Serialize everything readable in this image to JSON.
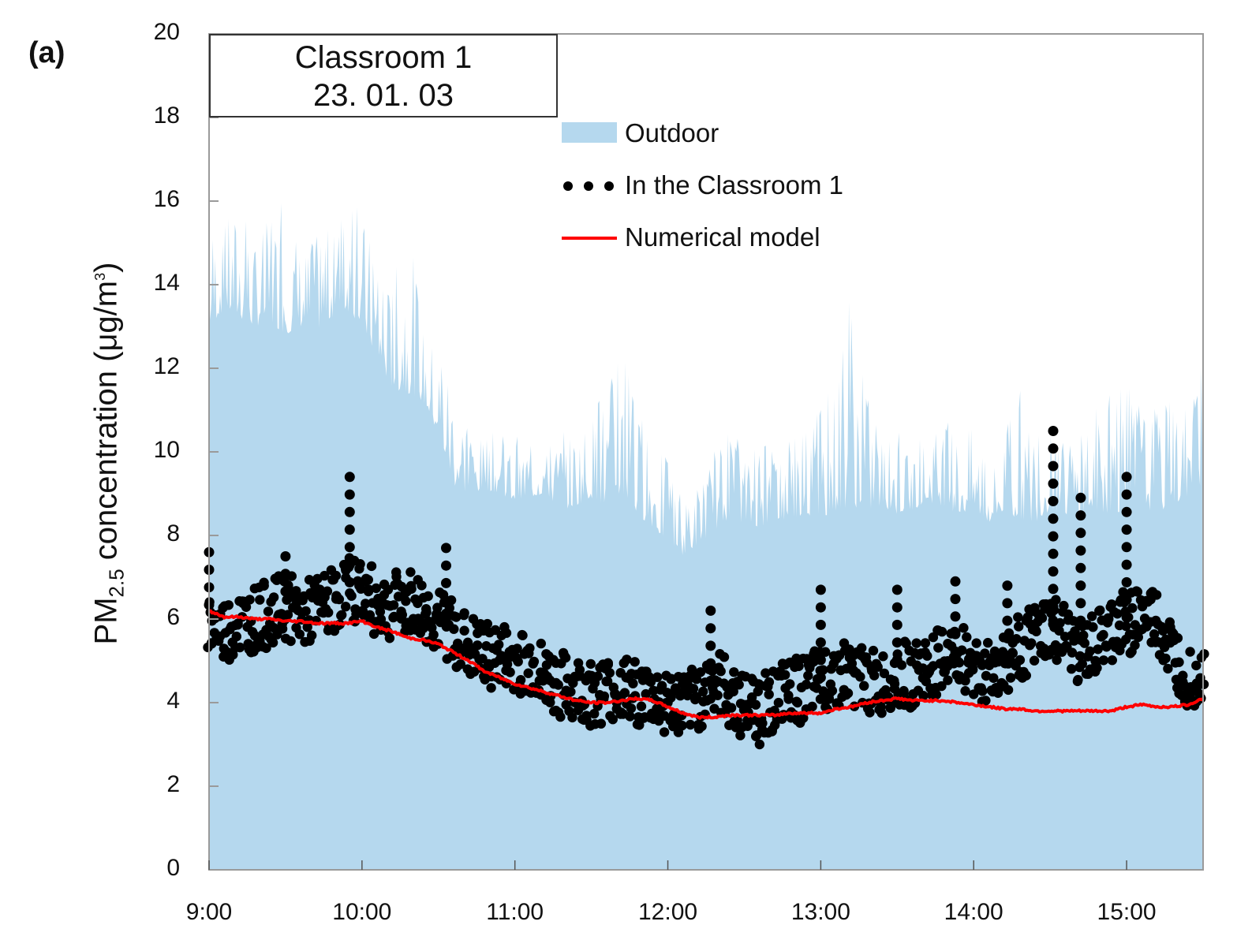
{
  "figure": {
    "panel_label": "(a)",
    "title_box": {
      "line1": "Classroom 1",
      "line2": "23. 01. 03"
    },
    "ylabel_main": "PM",
    "ylabel_sub": "2.5",
    "ylabel_rest": " concentration (μg/m",
    "ylabel_sup": "3",
    "ylabel_end": ")",
    "colors": {
      "outdoor": "#b5d8ee",
      "indoor": "#000000",
      "model": "#ff0000",
      "axis": "#9a9a9a"
    },
    "legend": [
      {
        "label": "Outdoor",
        "type": "area"
      },
      {
        "label": "In the Classroom 1",
        "type": "dots"
      },
      {
        "label": "Numerical model",
        "type": "line"
      }
    ]
  },
  "chart_data": {
    "type": "area",
    "title": "Classroom 1 — 23. 01. 03",
    "xlabel": "",
    "ylabel": "PM2.5 concentration (μg/m³)",
    "ylim": [
      0,
      20
    ],
    "yticks": [
      0,
      2,
      4,
      6,
      8,
      10,
      12,
      14,
      16,
      18,
      20
    ],
    "xticks": [
      "9:00",
      "10:00",
      "11:00",
      "12:00",
      "13:00",
      "14:00",
      "15:00"
    ],
    "xlim_hours": [
      9.0,
      15.5
    ],
    "grid": false,
    "legend_position": "upper center",
    "series": [
      {
        "name": "Outdoor",
        "type": "area",
        "x": [
          9.0,
          9.1,
          9.2,
          9.3,
          9.4,
          9.5,
          9.6,
          9.7,
          9.8,
          9.9,
          10.0,
          10.1,
          10.2,
          10.3,
          10.4,
          10.5,
          10.6,
          10.7,
          10.8,
          10.9,
          11.0,
          11.1,
          11.2,
          11.3,
          11.4,
          11.5,
          11.6,
          11.7,
          11.8,
          11.9,
          12.0,
          12.1,
          12.2,
          12.3,
          12.4,
          12.5,
          12.6,
          12.7,
          12.8,
          12.9,
          13.0,
          13.1,
          13.2,
          13.3,
          13.4,
          13.5,
          13.6,
          13.7,
          13.8,
          13.9,
          14.0,
          14.1,
          14.2,
          14.3,
          14.4,
          14.5,
          14.6,
          14.7,
          14.8,
          14.9,
          15.0,
          15.1,
          15.2,
          15.3,
          15.4,
          15.5
        ],
        "peak": [
          15.8,
          15.5,
          16.0,
          15.3,
          15.6,
          16.2,
          15.0,
          15.2,
          15.4,
          15.8,
          15.9,
          14.5,
          14.0,
          16.4,
          13.0,
          12.5,
          12.2,
          10.5,
          10.3,
          10.6,
          10.4,
          10.2,
          10.5,
          10.4,
          10.8,
          10.9,
          11.6,
          12.8,
          11.0,
          10.6,
          9.8,
          8.8,
          9.4,
          10.0,
          10.5,
          10.2,
          10.4,
          10.0,
          10.4,
          10.6,
          11.2,
          11.8,
          14.1,
          11.5,
          10.5,
          10.6,
          10.2,
          10.4,
          10.8,
          10.5,
          10.6,
          10.0,
          10.5,
          11.6,
          10.4,
          10.4,
          10.3,
          10.6,
          11.2,
          11.4,
          11.6,
          11.2,
          11.0,
          11.3,
          11.0,
          12.2
        ],
        "base": [
          13.0,
          13.4,
          13.2,
          13.0,
          13.1,
          12.8,
          13.0,
          12.9,
          13.2,
          13.4,
          13.0,
          12.2,
          11.5,
          11.4,
          11.2,
          10.4,
          9.2,
          9.0,
          9.1,
          9.0,
          8.8,
          8.9,
          9.0,
          8.6,
          8.7,
          8.9,
          8.7,
          9.0,
          8.5,
          8.2,
          7.8,
          7.5,
          7.8,
          8.1,
          8.4,
          8.3,
          8.2,
          8.3,
          8.4,
          8.5,
          8.4,
          8.6,
          8.7,
          8.6,
          8.7,
          8.5,
          8.6,
          8.8,
          8.7,
          8.5,
          8.6,
          8.3,
          8.5,
          8.4,
          8.3,
          8.6,
          8.5,
          8.5,
          8.6,
          8.5,
          8.6,
          8.7,
          8.5,
          8.8,
          8.8,
          9.2
        ]
      },
      {
        "name": "In the Classroom 1",
        "type": "scatter",
        "trend_x": [
          9.0,
          9.1,
          9.2,
          9.3,
          9.4,
          9.5,
          9.6,
          9.7,
          9.8,
          9.9,
          10.0,
          10.1,
          10.2,
          10.3,
          10.4,
          10.5,
          10.6,
          10.7,
          10.8,
          10.9,
          11.0,
          11.1,
          11.2,
          11.3,
          11.4,
          11.5,
          11.6,
          11.7,
          11.8,
          11.9,
          12.0,
          12.1,
          12.2,
          12.3,
          12.4,
          12.5,
          12.6,
          12.7,
          12.8,
          12.9,
          13.0,
          13.1,
          13.2,
          13.3,
          13.4,
          13.5,
          13.6,
          13.7,
          13.8,
          13.9,
          14.0,
          14.1,
          14.2,
          14.3,
          14.4,
          14.5,
          14.6,
          14.7,
          14.8,
          14.9,
          15.0,
          15.1,
          15.2,
          15.3,
          15.4,
          15.5
        ],
        "trend_y": [
          6.0,
          5.8,
          6.0,
          6.1,
          6.2,
          6.4,
          6.2,
          6.3,
          6.5,
          6.8,
          6.8,
          6.4,
          6.4,
          6.5,
          6.3,
          6.0,
          5.8,
          5.4,
          5.2,
          5.2,
          5.1,
          5.0,
          4.7,
          4.5,
          4.4,
          4.3,
          4.4,
          4.4,
          4.3,
          4.2,
          4.1,
          4.0,
          4.2,
          4.6,
          4.3,
          4.0,
          4.0,
          4.2,
          4.3,
          4.4,
          4.6,
          4.8,
          4.8,
          4.6,
          4.5,
          4.8,
          4.7,
          4.9,
          5.1,
          5.2,
          5.0,
          4.8,
          5.0,
          5.4,
          5.6,
          5.9,
          5.6,
          5.2,
          5.4,
          5.8,
          6.0,
          6.2,
          6.0,
          5.2,
          4.8,
          4.8
        ],
        "spikes": [
          {
            "x": 9.0,
            "top": 7.6
          },
          {
            "x": 9.5,
            "top": 7.5
          },
          {
            "x": 9.92,
            "top": 9.4
          },
          {
            "x": 10.55,
            "top": 7.7
          },
          {
            "x": 12.28,
            "top": 6.2
          },
          {
            "x": 13.0,
            "top": 6.7
          },
          {
            "x": 13.5,
            "top": 6.7
          },
          {
            "x": 13.88,
            "top": 6.9
          },
          {
            "x": 14.22,
            "top": 6.8
          },
          {
            "x": 14.52,
            "top": 10.5
          },
          {
            "x": 14.7,
            "top": 8.9
          },
          {
            "x": 15.0,
            "top": 9.4
          }
        ],
        "min_point": {
          "x": 12.6,
          "y": 3.0
        }
      },
      {
        "name": "Numerical model",
        "type": "line",
        "x": [
          9.0,
          9.1,
          9.2,
          9.3,
          9.4,
          9.5,
          9.6,
          9.7,
          9.8,
          9.9,
          10.0,
          10.1,
          10.2,
          10.3,
          10.4,
          10.5,
          10.6,
          10.7,
          10.8,
          10.9,
          11.0,
          11.1,
          11.2,
          11.3,
          11.4,
          11.5,
          11.6,
          11.7,
          11.8,
          11.9,
          12.0,
          12.1,
          12.2,
          12.3,
          12.4,
          12.5,
          12.6,
          12.7,
          12.8,
          12.9,
          13.0,
          13.1,
          13.2,
          13.3,
          13.4,
          13.5,
          13.6,
          13.7,
          13.8,
          13.9,
          14.0,
          14.1,
          14.2,
          14.3,
          14.4,
          14.5,
          14.6,
          14.7,
          14.8,
          14.9,
          15.0,
          15.1,
          15.2,
          15.3,
          15.4,
          15.5
        ],
        "y": [
          6.2,
          6.05,
          6.05,
          6.0,
          6.0,
          5.95,
          5.95,
          5.9,
          5.9,
          5.9,
          5.95,
          5.8,
          5.7,
          5.55,
          5.5,
          5.4,
          5.2,
          5.0,
          4.75,
          4.6,
          4.45,
          4.35,
          4.25,
          4.15,
          4.05,
          4.0,
          4.0,
          4.05,
          4.1,
          4.05,
          3.9,
          3.75,
          3.65,
          3.65,
          3.7,
          3.7,
          3.7,
          3.7,
          3.75,
          3.75,
          3.75,
          3.85,
          3.9,
          4.0,
          4.05,
          4.1,
          4.05,
          4.05,
          4.05,
          4.0,
          3.95,
          3.9,
          3.85,
          3.85,
          3.8,
          3.8,
          3.8,
          3.8,
          3.8,
          3.8,
          3.9,
          3.95,
          3.9,
          3.9,
          3.95,
          4.1
        ]
      }
    ]
  }
}
